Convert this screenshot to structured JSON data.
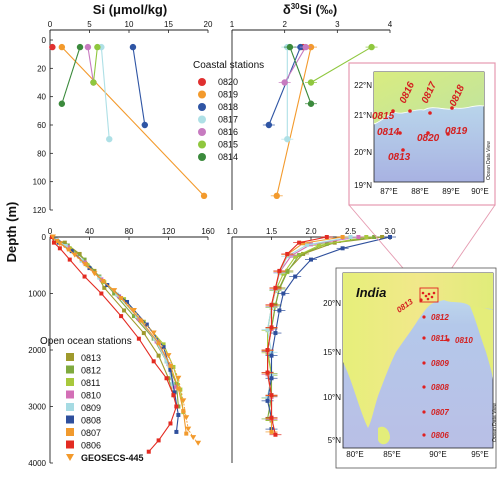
{
  "titles": {
    "si": "Si (μmol/kg)",
    "d30_delta": "δ",
    "d30_sup": "30",
    "d30_rest": "Si (‰)"
  },
  "ylabel": "Depth (m)",
  "maps": {
    "inset": {
      "lat_labels": [
        "22°N",
        "21°N",
        "20°N",
        "19°N"
      ],
      "lon_labels": [
        "87°E",
        "88°E",
        "89°E",
        "90°E"
      ],
      "stations": [
        "0815",
        "0816",
        "0817",
        "0818",
        "0814",
        "0820",
        "0819",
        "0813"
      ],
      "credit": "Ocean Data View"
    },
    "main": {
      "country": "India",
      "lat_labels": [
        "20°N",
        "15°N",
        "10°N",
        "5°N"
      ],
      "lon_labels": [
        "80°E",
        "85°E",
        "90°E",
        "95°E"
      ],
      "stations": [
        "0812",
        "0813",
        "0811",
        "0810",
        "0809",
        "0808",
        "0807",
        "0806"
      ],
      "credit": "Ocean Data View"
    }
  },
  "colors": {
    "0820": "#e03030",
    "0819": "#f39a2c",
    "0818": "#2f55a4",
    "0817": "#aee0e6",
    "0816": "#c77bc0",
    "0815": "#8fc73e",
    "0814": "#3b8a3c",
    "0813": "#9f9a2d",
    "0812": "#7faa3e",
    "0811": "#a8c83c",
    "0810": "#d36fb6",
    "0809": "#a6dbe3",
    "0808": "#2e4f9c",
    "0807": "#f19a2e",
    "0806": "#e32b22",
    "GEOSECS-445": "#f39a2c",
    "inset_border": "#e59ab0",
    "map_station": "#e02020",
    "map_station_label": "#d42020"
  },
  "chart_data": [
    {
      "type": "line",
      "panel": "coastal-si",
      "title": "Si (μmol/kg)",
      "xlim": [
        0,
        20
      ],
      "xticks": [
        "0",
        "5",
        "10",
        "15",
        "20"
      ],
      "ylim": [
        120,
        0
      ],
      "yticks": [
        "0",
        "20",
        "40",
        "60",
        "80",
        "100",
        "120"
      ],
      "legend_title": "Coastal stations",
      "legend_position": "right",
      "series": [
        {
          "name": "0820",
          "x": [
            0.3
          ],
          "y": [
            5
          ]
        },
        {
          "name": "0819",
          "x": [
            1.5,
            19.5
          ],
          "y": [
            5,
            110
          ]
        },
        {
          "name": "0818",
          "x": [
            10.5,
            12
          ],
          "y": [
            5,
            60
          ]
        },
        {
          "name": "0817",
          "x": [
            6.5,
            7.5
          ],
          "y": [
            5,
            70
          ]
        },
        {
          "name": "0816",
          "x": [
            4.8,
            5.5
          ],
          "y": [
            5,
            30
          ]
        },
        {
          "name": "0815",
          "x": [
            6,
            5.5
          ],
          "y": [
            5,
            30
          ]
        },
        {
          "name": "0814",
          "x": [
            3.8,
            1.5
          ],
          "y": [
            5,
            45
          ]
        }
      ]
    },
    {
      "type": "line",
      "panel": "coastal-d30si",
      "title": "δ30Si (‰)",
      "xlim": [
        1,
        4
      ],
      "xticks": [
        "1",
        "2",
        "3",
        "4"
      ],
      "ylim": [
        120,
        0
      ],
      "series": [
        {
          "name": "0820",
          "x": [
            2.35
          ],
          "y": [
            5
          ]
        },
        {
          "name": "0819",
          "x": [
            2.5,
            1.85
          ],
          "y": [
            5,
            110
          ]
        },
        {
          "name": "0818",
          "x": [
            2.3,
            1.7
          ],
          "y": [
            5,
            60
          ]
        },
        {
          "name": "0817",
          "x": [
            2.05,
            2.05
          ],
          "y": [
            5,
            70
          ]
        },
        {
          "name": "0816",
          "x": [
            2.4,
            2.0
          ],
          "y": [
            5,
            30
          ]
        },
        {
          "name": "0815",
          "x": [
            3.65,
            2.5
          ],
          "y": [
            5,
            30
          ]
        },
        {
          "name": "0814",
          "x": [
            2.1,
            2.5
          ],
          "y": [
            5,
            45
          ]
        }
      ]
    },
    {
      "type": "line",
      "panel": "open-si",
      "xlim": [
        0,
        160
      ],
      "xticks": [
        "0",
        "40",
        "80",
        "120",
        "160"
      ],
      "ylim": [
        4000,
        0
      ],
      "yticks": [
        "0",
        "1000",
        "2000",
        "3000",
        "4000"
      ],
      "legend_title": "Open ocean stations",
      "legend_position": "lower-left",
      "series": [
        {
          "name": "0813",
          "x": [
            2,
            5,
            15,
            30,
            45,
            55,
            75,
            95,
            110,
            120,
            125
          ],
          "y": [
            0,
            50,
            100,
            300,
            600,
            900,
            1300,
            1700,
            2100,
            2500,
            2800
          ]
        },
        {
          "name": "0812",
          "x": [
            2,
            6,
            18,
            35,
            50,
            65,
            85,
            105,
            118,
            128,
            130
          ],
          "y": [
            0,
            50,
            150,
            400,
            700,
            1000,
            1400,
            1800,
            2200,
            2600,
            3000
          ]
        },
        {
          "name": "0811",
          "x": [
            3,
            8,
            20,
            38,
            55,
            75,
            95,
            115,
            125,
            132,
            135
          ],
          "y": [
            0,
            80,
            200,
            500,
            800,
            1100,
            1500,
            1900,
            2300,
            2700,
            3100
          ]
        },
        {
          "name": "0810",
          "x": [
            2,
            7,
            18,
            35,
            52,
            70,
            90,
            108,
            120,
            126,
            128
          ],
          "y": [
            0,
            60,
            180,
            450,
            750,
            1050,
            1450,
            1850,
            2250,
            2650,
            3000
          ]
        },
        {
          "name": "0809",
          "x": [
            2,
            6,
            16,
            32,
            50,
            68,
            88,
            106,
            118,
            124
          ],
          "y": [
            0,
            50,
            160,
            420,
            720,
            1020,
            1400,
            1800,
            2200,
            2600
          ]
        },
        {
          "name": "0808",
          "x": [
            3,
            9,
            22,
            40,
            58,
            78,
            98,
            115,
            122,
            126,
            130,
            128
          ],
          "y": [
            0,
            100,
            250,
            550,
            850,
            1150,
            1550,
            1950,
            2350,
            2750,
            3150,
            3450
          ]
        },
        {
          "name": "0807",
          "x": [
            2,
            7,
            19,
            36,
            54,
            72,
            92,
            110,
            122,
            130,
            135,
            138
          ],
          "y": [
            0,
            70,
            220,
            480,
            780,
            1080,
            1480,
            1880,
            2280,
            2680,
            3080,
            3480
          ]
        },
        {
          "name": "0806",
          "x": [
            2,
            4,
            10,
            20,
            35,
            52,
            72,
            90,
            105,
            118,
            125,
            128,
            122,
            110,
            100
          ],
          "y": [
            0,
            100,
            200,
            400,
            700,
            1000,
            1400,
            1800,
            2200,
            2500,
            2800,
            3000,
            3300,
            3600,
            3800
          ]
        },
        {
          "name": "GEOSECS-445",
          "x": [
            3,
            10,
            25,
            45,
            65,
            85,
            105,
            120,
            130,
            135,
            138,
            140,
            145,
            150
          ],
          "y": [
            0,
            120,
            320,
            650,
            950,
            1300,
            1700,
            2100,
            2500,
            2900,
            3200,
            3400,
            3550,
            3650
          ]
        }
      ]
    },
    {
      "type": "line",
      "panel": "open-d30si",
      "xlim": [
        1,
        3
      ],
      "xticks": [
        "1.0",
        "1.5",
        "2.0",
        "2.5",
        "3.0"
      ],
      "ylim": [
        4000,
        0
      ],
      "series": [
        {
          "name": "0813",
          "x": [
            2.9,
            2.3,
            1.9,
            1.7,
            1.6,
            1.55,
            1.5,
            1.45,
            1.45,
            1.5,
            1.5
          ],
          "y": [
            0,
            100,
            300,
            600,
            900,
            1200,
            1600,
            2000,
            2400,
            2800,
            3200
          ]
        },
        {
          "name": "0812",
          "x": [
            2.8,
            2.2,
            1.85,
            1.7,
            1.6,
            1.55,
            1.5,
            1.45,
            1.5,
            1.5,
            1.45
          ],
          "y": [
            0,
            120,
            320,
            620,
            920,
            1220,
            1620,
            2020,
            2420,
            2820,
            3220
          ]
        },
        {
          "name": "0811",
          "x": [
            2.7,
            2.1,
            1.8,
            1.65,
            1.55,
            1.5,
            1.45,
            1.45,
            1.5,
            1.45,
            1.5
          ],
          "y": [
            0,
            150,
            350,
            650,
            950,
            1250,
            1650,
            2050,
            2450,
            2850,
            3250
          ]
        },
        {
          "name": "0810",
          "x": [
            2.6,
            2.0,
            1.75,
            1.6,
            1.55,
            1.5,
            1.5,
            1.45,
            1.45,
            1.5,
            1.5
          ],
          "y": [
            0,
            130,
            330,
            630,
            930,
            1230,
            1630,
            2030,
            2430,
            2830,
            3230
          ]
        },
        {
          "name": "0809",
          "x": [
            2.5,
            1.95,
            1.7,
            1.6,
            1.55,
            1.5,
            1.45,
            1.5,
            1.5,
            1.45
          ],
          "y": [
            0,
            140,
            340,
            640,
            940,
            1240,
            1640,
            2040,
            2440,
            2840
          ]
        },
        {
          "name": "0808",
          "x": [
            3.0,
            2.4,
            2.0,
            1.8,
            1.65,
            1.6,
            1.55,
            1.5,
            1.5,
            1.45,
            1.5,
            1.5
          ],
          "y": [
            0,
            200,
            400,
            700,
            1000,
            1300,
            1700,
            2100,
            2500,
            2900,
            3200,
            3400
          ]
        },
        {
          "name": "0807",
          "x": [
            2.4,
            1.9,
            1.7,
            1.6,
            1.55,
            1.5,
            1.5,
            1.45,
            1.45,
            1.5,
            1.5,
            1.5
          ],
          "y": [
            0,
            110,
            310,
            610,
            910,
            1210,
            1610,
            2010,
            2410,
            2810,
            3210,
            3450
          ]
        },
        {
          "name": "0806",
          "x": [
            2.2,
            1.85,
            1.7,
            1.6,
            1.55,
            1.5,
            1.5,
            1.45,
            1.45,
            1.5,
            1.5,
            1.55
          ],
          "y": [
            0,
            100,
            300,
            600,
            900,
            1200,
            1600,
            2000,
            2400,
            2800,
            3200,
            3500
          ]
        }
      ]
    }
  ]
}
